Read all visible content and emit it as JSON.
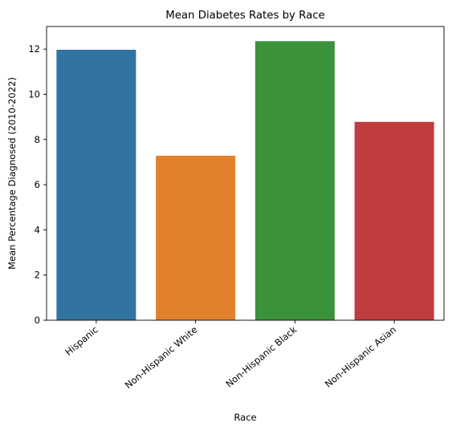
{
  "chart_data": {
    "type": "bar",
    "title": "Mean Diabetes Rates by Race",
    "xlabel": "Race",
    "ylabel": "Mean Percentage Diagnosed (2010-2022)",
    "categories": [
      "Hispanic",
      "Non-Hispanic White",
      "Non-Hispanic Black",
      "Non-Hispanic Asian"
    ],
    "values": [
      11.97,
      7.28,
      12.35,
      8.78
    ],
    "colors": [
      "#3274a1",
      "#e1812c",
      "#3a923a",
      "#c03d3e"
    ],
    "ylim": [
      0,
      13
    ],
    "yticks": [
      0,
      2,
      4,
      6,
      8,
      10,
      12
    ],
    "grid": false,
    "legend": "none"
  }
}
